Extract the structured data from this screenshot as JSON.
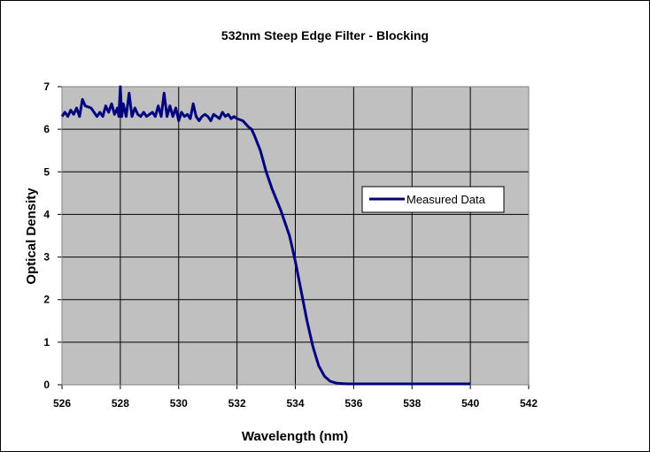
{
  "chart_data": {
    "type": "line",
    "title": "532nm Steep Edge Filter - Blocking",
    "xlabel": "Wavelength (nm)",
    "ylabel": "Optical Density",
    "xlim": [
      526,
      542
    ],
    "ylim": [
      0,
      7
    ],
    "x_ticks": [
      "526",
      "528",
      "530",
      "532",
      "534",
      "536",
      "538",
      "540",
      "542"
    ],
    "y_ticks": [
      "0",
      "1",
      "2",
      "3",
      "4",
      "5",
      "6",
      "7"
    ],
    "grid": true,
    "plot_background": "#c0c0c0",
    "legend": {
      "position": "right",
      "entries": [
        "Measured Data"
      ]
    },
    "series": [
      {
        "name": "Measured Data",
        "color": "#000080",
        "x": [
          526.0,
          526.1,
          526.2,
          526.3,
          526.4,
          526.5,
          526.6,
          526.7,
          526.8,
          527.0,
          527.2,
          527.3,
          527.4,
          527.5,
          527.6,
          527.7,
          527.8,
          527.9,
          527.95,
          528.0,
          528.05,
          528.1,
          528.2,
          528.3,
          528.4,
          528.5,
          528.6,
          528.7,
          528.8,
          528.9,
          529.0,
          529.1,
          529.2,
          529.3,
          529.4,
          529.5,
          529.6,
          529.7,
          529.8,
          529.9,
          530.0,
          530.1,
          530.2,
          530.3,
          530.4,
          530.5,
          530.6,
          530.7,
          530.8,
          530.9,
          531.0,
          531.1,
          531.2,
          531.3,
          531.4,
          531.5,
          531.6,
          531.7,
          531.8,
          531.9,
          532.0,
          532.2,
          532.4,
          532.5,
          532.6,
          532.8,
          533.0,
          533.2,
          533.5,
          533.8,
          534.0,
          534.2,
          534.4,
          534.6,
          534.8,
          535.0,
          535.2,
          535.4,
          535.6,
          535.8,
          536.0,
          536.5,
          537.0,
          538.0,
          539.0,
          540.0
        ],
        "y": [
          6.3,
          6.4,
          6.3,
          6.45,
          6.35,
          6.5,
          6.3,
          6.7,
          6.55,
          6.5,
          6.3,
          6.4,
          6.3,
          6.55,
          6.4,
          6.6,
          6.35,
          6.5,
          6.3,
          7.0,
          6.3,
          6.6,
          6.3,
          6.85,
          6.3,
          6.5,
          6.35,
          6.3,
          6.4,
          6.3,
          6.35,
          6.4,
          6.3,
          6.55,
          6.3,
          6.85,
          6.3,
          6.55,
          6.3,
          6.5,
          6.2,
          6.4,
          6.3,
          6.35,
          6.25,
          6.6,
          6.3,
          6.2,
          6.3,
          6.35,
          6.3,
          6.2,
          6.35,
          6.3,
          6.25,
          6.4,
          6.3,
          6.35,
          6.25,
          6.3,
          6.25,
          6.2,
          6.05,
          6.0,
          5.85,
          5.5,
          5.0,
          4.6,
          4.1,
          3.5,
          2.9,
          2.2,
          1.5,
          0.9,
          0.45,
          0.2,
          0.08,
          0.04,
          0.03,
          0.02,
          0.02,
          0.02,
          0.02,
          0.02,
          0.02,
          0.02
        ]
      }
    ]
  }
}
